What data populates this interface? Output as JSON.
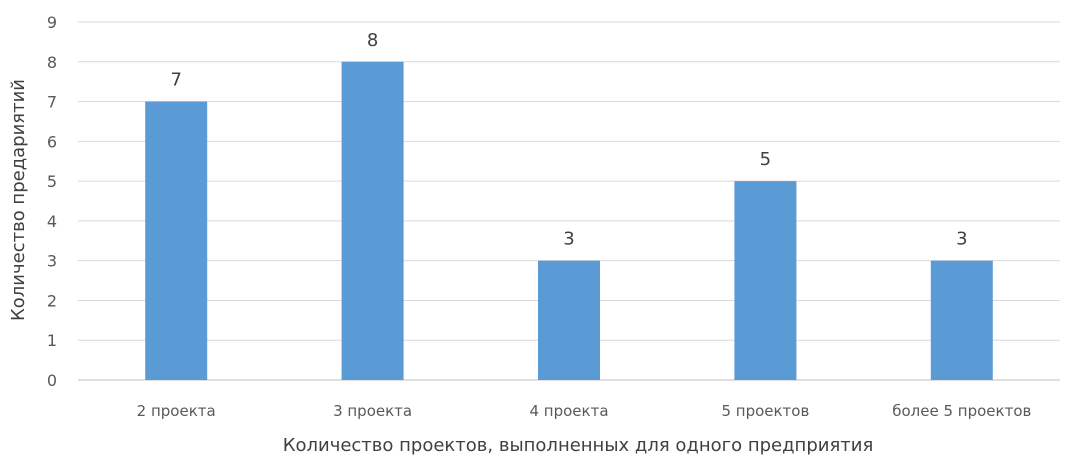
{
  "chart_data": {
    "type": "bar",
    "categories": [
      "2 проекта",
      "3 проекта",
      "4 проекта",
      "5 проектов",
      "более 5 проектов"
    ],
    "values": [
      7,
      8,
      3,
      5,
      3
    ],
    "title": "",
    "xlabel": "Количество проектов, выполненных для одного предприятия",
    "ylabel": "Количество предариятий",
    "ylim": [
      0,
      9
    ],
    "yticks": [
      0,
      1,
      2,
      3,
      4,
      5,
      6,
      7,
      8,
      9
    ],
    "grid": true,
    "legend": "none",
    "bar_color": "#5b9bd5"
  }
}
